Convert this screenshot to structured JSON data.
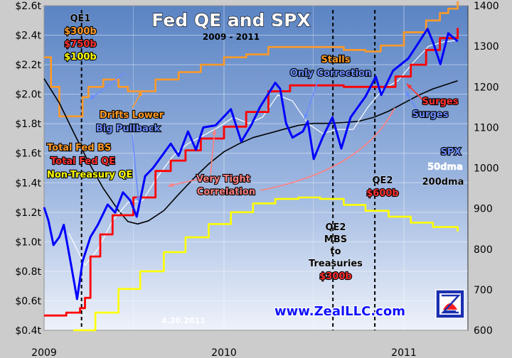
{
  "chart_data": {
    "type": "line",
    "title": "Fed QE and SPX",
    "subtitle": "2009 - 2011",
    "x_ticks": [
      "2009",
      "2010",
      "2011"
    ],
    "y_left_ticks": [
      "$0.4t",
      "$0.6t",
      "$0.8t",
      "$1.0t",
      "$1.2t",
      "$1.4t",
      "$1.6t",
      "$1.8t",
      "$2.0t",
      "$2.2t",
      "$2.4t",
      "$2.6t"
    ],
    "y_right_ticks": [
      "600",
      "700",
      "800",
      "900",
      "1000",
      "1100",
      "1200",
      "1300",
      "1400"
    ],
    "ylim_left": [
      0.4,
      2.6
    ],
    "ylim_right": [
      600,
      1400
    ],
    "series": [
      {
        "name": "Total Fed BS",
        "axis": "left",
        "color": "#ff9a26",
        "points": [
          [
            "2009-01-01",
            2.25
          ],
          [
            "2009-01-15",
            2.05
          ],
          [
            "2009-02-01",
            1.85
          ],
          [
            "2009-03-01",
            1.85
          ],
          [
            "2009-03-20",
            1.98
          ],
          [
            "2009-04-01",
            2.05
          ],
          [
            "2009-05-01",
            2.1
          ],
          [
            "2009-06-01",
            2.05
          ],
          [
            "2009-06-20",
            2.02
          ],
          [
            "2009-07-15",
            2.02
          ],
          [
            "2009-08-15",
            2.1
          ],
          [
            "2009-10-01",
            2.15
          ],
          [
            "2009-11-15",
            2.2
          ],
          [
            "2010-01-01",
            2.25
          ],
          [
            "2010-02-15",
            2.27
          ],
          [
            "2010-04-01",
            2.32
          ],
          [
            "2010-05-15",
            2.32
          ],
          [
            "2010-07-01",
            2.32
          ],
          [
            "2010-09-01",
            2.3
          ],
          [
            "2010-10-15",
            2.29
          ],
          [
            "2010-11-15",
            2.33
          ],
          [
            "2011-01-01",
            2.42
          ],
          [
            "2011-02-15",
            2.5
          ],
          [
            "2011-03-15",
            2.55
          ],
          [
            "2011-04-01",
            2.58
          ],
          [
            "2011-04-20",
            2.63
          ]
        ]
      },
      {
        "name": "Total Fed QE",
        "axis": "left",
        "color": "#ff0000",
        "points": [
          [
            "2009-01-01",
            0.5
          ],
          [
            "2009-02-15",
            0.52
          ],
          [
            "2009-03-15",
            0.55
          ],
          [
            "2009-03-25",
            0.62
          ],
          [
            "2009-04-05",
            0.9
          ],
          [
            "2009-04-25",
            1.05
          ],
          [
            "2009-05-20",
            1.18
          ],
          [
            "2009-07-01",
            1.3
          ],
          [
            "2009-08-15",
            1.48
          ],
          [
            "2009-09-15",
            1.55
          ],
          [
            "2009-10-15",
            1.62
          ],
          [
            "2009-11-15",
            1.7
          ],
          [
            "2010-01-01",
            1.78
          ],
          [
            "2010-02-15",
            1.88
          ],
          [
            "2010-04-01",
            2.02
          ],
          [
            "2010-05-15",
            2.06
          ],
          [
            "2010-07-01",
            2.06
          ],
          [
            "2010-09-01",
            2.05
          ],
          [
            "2010-10-15",
            2.05
          ],
          [
            "2010-11-15",
            2.05
          ],
          [
            "2010-12-15",
            2.12
          ],
          [
            "2011-01-15",
            2.2
          ],
          [
            "2011-02-15",
            2.3
          ],
          [
            "2011-03-15",
            2.38
          ],
          [
            "2011-04-20",
            2.45
          ]
        ]
      },
      {
        "name": "Non-Treasury QE",
        "axis": "left",
        "color": "#ffff00",
        "points": [
          [
            "2009-03-01",
            0.4
          ],
          [
            "2009-04-15",
            0.52
          ],
          [
            "2009-06-01",
            0.68
          ],
          [
            "2009-07-15",
            0.8
          ],
          [
            "2009-09-01",
            0.93
          ],
          [
            "2009-10-15",
            1.03
          ],
          [
            "2009-12-01",
            1.12
          ],
          [
            "2010-01-15",
            1.2
          ],
          [
            "2010-03-01",
            1.26
          ],
          [
            "2010-04-15",
            1.29
          ],
          [
            "2010-06-01",
            1.3
          ],
          [
            "2010-07-15",
            1.29
          ],
          [
            "2010-09-01",
            1.25
          ],
          [
            "2010-10-15",
            1.21
          ],
          [
            "2010-12-01",
            1.17
          ],
          [
            "2011-01-15",
            1.13
          ],
          [
            "2011-03-01",
            1.1
          ],
          [
            "2011-04-20",
            1.07
          ]
        ]
      },
      {
        "name": "SPX",
        "axis": "right",
        "color": "#0000ff",
        "points": [
          [
            "2009-01-01",
            903
          ],
          [
            "2009-01-10",
            870
          ],
          [
            "2009-01-20",
            810
          ],
          [
            "2009-02-01",
            830
          ],
          [
            "2009-02-10",
            860
          ],
          [
            "2009-02-25",
            760
          ],
          [
            "2009-03-09",
            677
          ],
          [
            "2009-03-20",
            770
          ],
          [
            "2009-04-05",
            830
          ],
          [
            "2009-04-20",
            860
          ],
          [
            "2009-05-10",
            910
          ],
          [
            "2009-05-25",
            890
          ],
          [
            "2009-06-10",
            940
          ],
          [
            "2009-06-25",
            920
          ],
          [
            "2009-07-08",
            880
          ],
          [
            "2009-07-25",
            980
          ],
          [
            "2009-08-10",
            1000
          ],
          [
            "2009-08-25",
            1025
          ],
          [
            "2009-09-15",
            1060
          ],
          [
            "2009-10-01",
            1030
          ],
          [
            "2009-10-20",
            1090
          ],
          [
            "2009-11-05",
            1045
          ],
          [
            "2009-11-20",
            1100
          ],
          [
            "2009-12-15",
            1105
          ],
          [
            "2010-01-15",
            1145
          ],
          [
            "2010-02-05",
            1065
          ],
          [
            "2010-02-25",
            1105
          ],
          [
            "2010-03-15",
            1150
          ],
          [
            "2010-04-15",
            1210
          ],
          [
            "2010-04-25",
            1195
          ],
          [
            "2010-05-07",
            1110
          ],
          [
            "2010-05-20",
            1075
          ],
          [
            "2010-06-10",
            1090
          ],
          [
            "2010-06-20",
            1115
          ],
          [
            "2010-07-02",
            1022
          ],
          [
            "2010-07-20",
            1075
          ],
          [
            "2010-08-09",
            1125
          ],
          [
            "2010-08-27",
            1048
          ],
          [
            "2010-09-15",
            1125
          ],
          [
            "2010-10-15",
            1176
          ],
          [
            "2010-11-05",
            1225
          ],
          [
            "2010-11-16",
            1180
          ],
          [
            "2010-12-10",
            1240
          ],
          [
            "2011-01-10",
            1270
          ],
          [
            "2011-02-18",
            1343
          ],
          [
            "2011-03-01",
            1310
          ],
          [
            "2011-03-16",
            1256
          ],
          [
            "2011-04-01",
            1332
          ],
          [
            "2011-04-20",
            1312
          ]
        ]
      },
      {
        "name": "50dma",
        "axis": "right",
        "color": "#ffffff",
        "points": [
          [
            "2009-02-20",
            840
          ],
          [
            "2009-03-25",
            760
          ],
          [
            "2009-04-20",
            800
          ],
          [
            "2009-05-20",
            870
          ],
          [
            "2009-06-20",
            915
          ],
          [
            "2009-07-20",
            920
          ],
          [
            "2009-08-20",
            980
          ],
          [
            "2009-09-20",
            1030
          ],
          [
            "2009-10-20",
            1060
          ],
          [
            "2009-11-20",
            1080
          ],
          [
            "2009-12-20",
            1100
          ],
          [
            "2010-01-20",
            1125
          ],
          [
            "2010-02-20",
            1110
          ],
          [
            "2010-03-20",
            1125
          ],
          [
            "2010-04-20",
            1180
          ],
          [
            "2010-05-20",
            1165
          ],
          [
            "2010-06-20",
            1110
          ],
          [
            "2010-07-20",
            1085
          ],
          [
            "2010-08-20",
            1095
          ],
          [
            "2010-09-20",
            1095
          ],
          [
            "2010-10-20",
            1150
          ],
          [
            "2010-11-20",
            1195
          ],
          [
            "2010-12-20",
            1215
          ],
          [
            "2011-01-20",
            1260
          ],
          [
            "2011-02-20",
            1300
          ],
          [
            "2011-03-20",
            1310
          ],
          [
            "2011-04-20",
            1315
          ]
        ]
      },
      {
        "name": "200dma",
        "axis": "right",
        "color": "#000000",
        "points": [
          [
            "2009-01-01",
            1220
          ],
          [
            "2009-02-01",
            1160
          ],
          [
            "2009-03-01",
            1090
          ],
          [
            "2009-04-01",
            1015
          ],
          [
            "2009-05-01",
            950
          ],
          [
            "2009-06-01",
            895
          ],
          [
            "2009-06-20",
            868
          ],
          [
            "2009-07-10",
            862
          ],
          [
            "2009-08-01",
            870
          ],
          [
            "2009-09-01",
            895
          ],
          [
            "2009-10-01",
            935
          ],
          [
            "2009-11-01",
            975
          ],
          [
            "2009-12-01",
            1010
          ],
          [
            "2010-01-01",
            1040
          ],
          [
            "2010-02-01",
            1060
          ],
          [
            "2010-03-01",
            1075
          ],
          [
            "2010-04-01",
            1085
          ],
          [
            "2010-05-01",
            1095
          ],
          [
            "2010-06-01",
            1105
          ],
          [
            "2010-07-01",
            1110
          ],
          [
            "2010-08-01",
            1110
          ],
          [
            "2010-09-01",
            1112
          ],
          [
            "2010-10-01",
            1115
          ],
          [
            "2010-11-01",
            1125
          ],
          [
            "2010-12-01",
            1140
          ],
          [
            "2011-01-01",
            1160
          ],
          [
            "2011-02-01",
            1180
          ],
          [
            "2011-03-01",
            1195
          ],
          [
            "2011-04-20",
            1215
          ]
        ]
      }
    ],
    "event_lines": [
      {
        "name": "QE1",
        "date": "2009-03-18"
      },
      {
        "name": "QE2 MBS to Treasuries",
        "date": "2010-08-10"
      },
      {
        "name": "QE2",
        "date": "2010-11-03"
      }
    ],
    "annotations": {
      "qe1": [
        "QE1",
        "$300b",
        "$750b",
        "$100b"
      ],
      "qe2_mbs": [
        "QE2",
        "MBS",
        "to",
        "Treasuries",
        "$300b"
      ],
      "qe2": [
        "QE2",
        "$600b"
      ],
      "stalls": [
        "Stalls",
        "Only Correction"
      ],
      "drifts": [
        "Drifts Lower",
        "Big Pullback"
      ],
      "tight": [
        "Very Tight",
        "Correlation"
      ],
      "surges": [
        "Surges",
        "Surges"
      ],
      "legend_left": [
        "Total Fed BS",
        "Total Fed QE",
        "Non-Treasury QE"
      ],
      "legend_right": [
        "SPX",
        "50dma",
        "200dma"
      ],
      "date_stamp": "4.20.2011",
      "brand": "www.ZealLLC.com"
    },
    "grid": true
  }
}
